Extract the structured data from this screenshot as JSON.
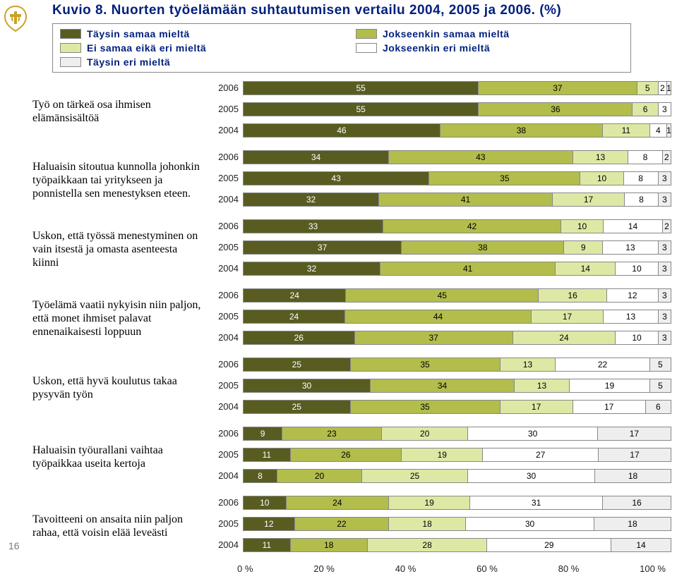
{
  "page_number": "16",
  "title": "Kuvio 8. Nuorten työelämään suhtautumisen vertailu 2004, 2005 ja 2006. (%)",
  "colors": {
    "c1": "#595c21",
    "c2": "#b2bd4c",
    "c3": "#dee8a5",
    "c4": "#ffffff",
    "c5": "#eeeeee",
    "title": "#001f7c",
    "stroke": "#888888"
  },
  "legend": [
    {
      "label": "Täysin samaa mieltä",
      "color": "#595c21"
    },
    {
      "label": "Ei samaa eikä eri mieltä",
      "color": "#dee8a5"
    },
    {
      "label": "Täysin eri mieltä",
      "color": "#eeeeee"
    },
    {
      "label": "Jokseenkin samaa mieltä",
      "color": "#b2bd4c"
    },
    {
      "label": "Jokseenkin eri mieltä",
      "color": "#ffffff"
    }
  ],
  "axis": [
    "0 %",
    "20 %",
    "40 %",
    "60 %",
    "80 %",
    "100 %"
  ],
  "groups": [
    {
      "label": "Työ on tärkeä osa ihmisen elämänsisältöä",
      "rows": [
        {
          "year": "2006",
          "v": [
            55,
            37,
            5,
            2,
            1
          ]
        },
        {
          "year": "2005",
          "v": [
            55,
            36,
            6,
            3,
            0
          ]
        },
        {
          "year": "2004",
          "v": [
            46,
            38,
            11,
            4,
            1
          ]
        }
      ]
    },
    {
      "label": "Haluaisin sitoutua kunnolla johonkin työpaikkaan tai yritykseen ja ponnistella sen menestyksen eteen.",
      "rows": [
        {
          "year": "2006",
          "v": [
            34,
            43,
            13,
            8,
            2
          ]
        },
        {
          "year": "2005",
          "v": [
            43,
            35,
            10,
            8,
            3
          ]
        },
        {
          "year": "2004",
          "v": [
            32,
            41,
            17,
            8,
            3
          ]
        }
      ]
    },
    {
      "label": "Uskon, että työssä menestyminen on vain itsestä ja omasta asenteesta kiinni",
      "rows": [
        {
          "year": "2006",
          "v": [
            33,
            42,
            10,
            14,
            2
          ]
        },
        {
          "year": "2005",
          "v": [
            37,
            38,
            9,
            13,
            3
          ]
        },
        {
          "year": "2004",
          "v": [
            32,
            41,
            14,
            10,
            3
          ]
        }
      ]
    },
    {
      "label": "Työelämä vaatii nykyisin niin paljon, että monet ihmiset palavat ennenaikaisesti loppuun",
      "rows": [
        {
          "year": "2006",
          "v": [
            24,
            45,
            16,
            12,
            3
          ]
        },
        {
          "year": "2005",
          "v": [
            24,
            44,
            17,
            13,
            3
          ]
        },
        {
          "year": "2004",
          "v": [
            26,
            37,
            24,
            10,
            3
          ]
        }
      ]
    },
    {
      "label": "Uskon, että hyvä koulutus takaa pysyvän työn",
      "rows": [
        {
          "year": "2006",
          "v": [
            25,
            35,
            13,
            22,
            5
          ]
        },
        {
          "year": "2005",
          "v": [
            30,
            34,
            13,
            19,
            5
          ]
        },
        {
          "year": "2004",
          "v": [
            25,
            35,
            17,
            17,
            6
          ]
        }
      ]
    },
    {
      "label": "Haluaisin työurallani vaihtaa työpaikkaa useita kertoja",
      "rows": [
        {
          "year": "2006",
          "v": [
            9,
            23,
            20,
            30,
            17
          ]
        },
        {
          "year": "2005",
          "v": [
            11,
            26,
            19,
            27,
            17
          ]
        },
        {
          "year": "2004",
          "v": [
            8,
            20,
            25,
            30,
            18
          ]
        }
      ]
    },
    {
      "label": "Tavoitteeni on ansaita niin paljon rahaa, että voisin elää leveästi",
      "rows": [
        {
          "year": "2006",
          "v": [
            10,
            24,
            19,
            31,
            16
          ]
        },
        {
          "year": "2005",
          "v": [
            12,
            22,
            18,
            30,
            18
          ]
        },
        {
          "year": "2004",
          "v": [
            11,
            18,
            28,
            29,
            14
          ]
        }
      ]
    }
  ]
}
